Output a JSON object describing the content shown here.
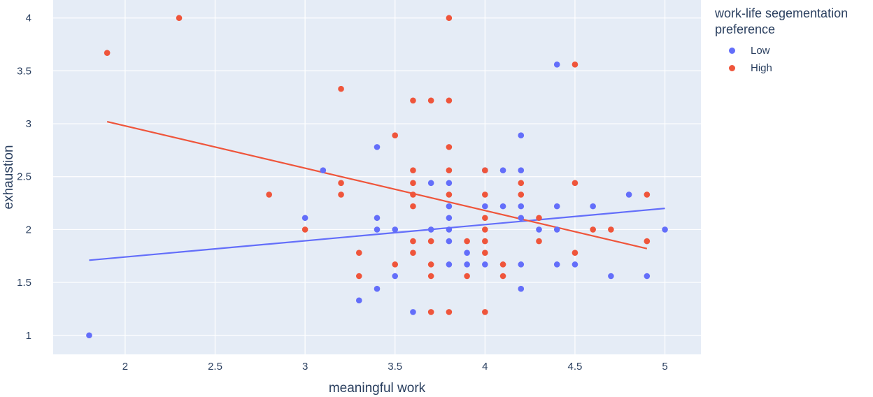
{
  "chart_data": {
    "type": "scatter",
    "xlabel": "meaningful work",
    "ylabel": "exhaustion",
    "xlim": [
      1.6,
      5.2
    ],
    "ylim": [
      0.82,
      4.17
    ],
    "xticks": [
      "2",
      "2.5",
      "3",
      "3.5",
      "4",
      "4.5",
      "5"
    ],
    "yticks": [
      "1",
      "1.5",
      "2",
      "2.5",
      "3",
      "3.5",
      "4"
    ],
    "grid": true,
    "legend": {
      "title": "work-life segementation preference",
      "placement": "right"
    },
    "series": [
      {
        "name": "Low",
        "color": "#636efa",
        "points": [
          [
            1.8,
            1.0
          ],
          [
            3.0,
            2.11
          ],
          [
            3.1,
            2.56
          ],
          [
            3.3,
            1.33
          ],
          [
            3.4,
            2.78
          ],
          [
            3.4,
            2.11
          ],
          [
            3.4,
            2.0
          ],
          [
            3.4,
            1.44
          ],
          [
            3.5,
            2.0
          ],
          [
            3.5,
            1.56
          ],
          [
            3.6,
            1.22
          ],
          [
            3.7,
            2.44
          ],
          [
            3.7,
            2.0
          ],
          [
            3.8,
            2.44
          ],
          [
            3.8,
            2.22
          ],
          [
            3.8,
            2.11
          ],
          [
            3.8,
            2.0
          ],
          [
            3.8,
            1.89
          ],
          [
            3.8,
            1.67
          ],
          [
            3.9,
            1.78
          ],
          [
            3.9,
            1.67
          ],
          [
            4.0,
            2.56
          ],
          [
            4.0,
            2.22
          ],
          [
            4.0,
            1.67
          ],
          [
            4.1,
            2.56
          ],
          [
            4.1,
            2.22
          ],
          [
            4.2,
            2.89
          ],
          [
            4.2,
            2.56
          ],
          [
            4.2,
            2.22
          ],
          [
            4.2,
            2.11
          ],
          [
            4.2,
            1.67
          ],
          [
            4.2,
            1.44
          ],
          [
            4.3,
            2.0
          ],
          [
            4.4,
            3.56
          ],
          [
            4.4,
            2.22
          ],
          [
            4.4,
            2.0
          ],
          [
            4.4,
            1.67
          ],
          [
            4.5,
            1.67
          ],
          [
            4.6,
            2.22
          ],
          [
            4.7,
            1.56
          ],
          [
            4.8,
            2.33
          ],
          [
            4.9,
            1.56
          ],
          [
            5.0,
            2.0
          ]
        ],
        "trend": [
          [
            1.8,
            1.71
          ],
          [
            5.0,
            2.2
          ]
        ]
      },
      {
        "name": "High",
        "color": "#ef553b",
        "points": [
          [
            1.9,
            3.67
          ],
          [
            2.3,
            4.0
          ],
          [
            2.8,
            2.33
          ],
          [
            3.0,
            2.0
          ],
          [
            3.2,
            3.33
          ],
          [
            3.2,
            2.44
          ],
          [
            3.2,
            2.33
          ],
          [
            3.3,
            1.78
          ],
          [
            3.3,
            1.56
          ],
          [
            3.5,
            2.89
          ],
          [
            3.5,
            1.67
          ],
          [
            3.6,
            3.22
          ],
          [
            3.6,
            2.56
          ],
          [
            3.6,
            2.44
          ],
          [
            3.6,
            2.33
          ],
          [
            3.6,
            2.22
          ],
          [
            3.6,
            1.89
          ],
          [
            3.6,
            1.78
          ],
          [
            3.7,
            3.22
          ],
          [
            3.7,
            1.89
          ],
          [
            3.7,
            1.67
          ],
          [
            3.7,
            1.56
          ],
          [
            3.7,
            1.22
          ],
          [
            3.8,
            4.0
          ],
          [
            3.8,
            3.22
          ],
          [
            3.8,
            2.78
          ],
          [
            3.8,
            2.56
          ],
          [
            3.8,
            2.33
          ],
          [
            3.8,
            1.22
          ],
          [
            3.9,
            1.89
          ],
          [
            3.9,
            1.56
          ],
          [
            4.0,
            2.56
          ],
          [
            4.0,
            2.33
          ],
          [
            4.0,
            2.11
          ],
          [
            4.0,
            2.0
          ],
          [
            4.0,
            1.89
          ],
          [
            4.0,
            1.78
          ],
          [
            4.0,
            1.22
          ],
          [
            4.1,
            1.67
          ],
          [
            4.1,
            1.56
          ],
          [
            4.2,
            2.44
          ],
          [
            4.2,
            2.33
          ],
          [
            4.3,
            2.11
          ],
          [
            4.3,
            1.89
          ],
          [
            4.5,
            3.56
          ],
          [
            4.5,
            2.44
          ],
          [
            4.5,
            1.78
          ],
          [
            4.6,
            2.0
          ],
          [
            4.7,
            2.0
          ],
          [
            4.9,
            2.33
          ],
          [
            4.9,
            1.89
          ]
        ],
        "trend": [
          [
            1.9,
            3.02
          ],
          [
            4.9,
            1.82
          ]
        ]
      }
    ]
  }
}
